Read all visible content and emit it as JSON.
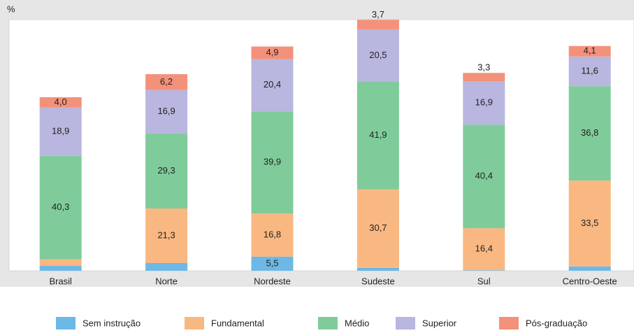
{
  "chart_data": {
    "type": "stacked_bar",
    "y_axis_label": "%",
    "categories": [
      "Brasil",
      "Norte",
      "Nordeste",
      "Sudeste",
      "Sul",
      "Centro-Oeste"
    ],
    "ylim": [
      0,
      98
    ],
    "legend_position": "bottom",
    "series": [
      {
        "name": "Sem instrução",
        "color": "#6cb8e6",
        "values": [
          1.9,
          3.0,
          5.5,
          1.1,
          0.2,
          1.7
        ],
        "value_labels": [
          "1,9",
          "3,0",
          "5,5",
          "1,1",
          "0,2",
          "1,7"
        ]
      },
      {
        "name": "Fundamental",
        "color": "#f9b881",
        "values": [
          2.6,
          21.3,
          16.8,
          30.7,
          16.4,
          33.5
        ],
        "value_labels": [
          "2,6",
          "21,3",
          "16,8",
          "30,7",
          "16,4",
          "33,5"
        ]
      },
      {
        "name": "Médio",
        "color": "#7fcc9a",
        "values": [
          40.3,
          29.3,
          39.9,
          41.9,
          40.4,
          36.8
        ],
        "value_labels": [
          "40,3",
          "29,3",
          "39,9",
          "41,9",
          "40,4",
          "36,8"
        ]
      },
      {
        "name": "Superior",
        "color": "#b9b6e0",
        "values": [
          18.9,
          16.9,
          20.4,
          20.5,
          16.9,
          11.6
        ],
        "value_labels": [
          "18,9",
          "16,9",
          "20,4",
          "20,5",
          "16,9",
          "11,6"
        ]
      },
      {
        "name": "Pós-graduação",
        "color": "#f4917a",
        "values": [
          4.0,
          6.2,
          4.9,
          3.7,
          3.3,
          4.1
        ],
        "value_labels": [
          "4,0",
          "6,2",
          "4,9",
          "3,7",
          "3,3",
          "4,1"
        ]
      }
    ]
  }
}
